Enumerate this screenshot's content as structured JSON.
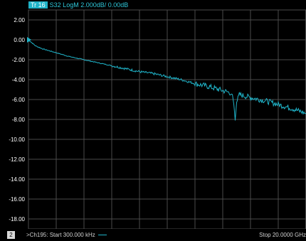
{
  "header": {
    "trace_badge": "Tr 16",
    "trace_desc": "S32 LogM 2.000dB/ 0.00dB"
  },
  "footer": {
    "channel_number": "2",
    "start_text": ">Ch195: Start 300.000 kHz",
    "stop_text": "Stop 20.0000 GHz"
  },
  "colors": {
    "trace": "#1fb3c8",
    "grid": "#4a4a4a",
    "background": "#000000"
  },
  "chart_data": {
    "type": "line",
    "title": "",
    "xlabel": "",
    "ylabel": "",
    "xlim": [
      0.0003,
      20.0
    ],
    "ylim": [
      -19,
      3
    ],
    "y_ticks": [
      "2.00",
      "0.00",
      "-2.00",
      "-4.00",
      "-6.00",
      "-8.00",
      "-10.00",
      "-12.00",
      "-14.00",
      "-16.00",
      "-18.00"
    ],
    "y_tick_values": [
      2,
      0,
      -2,
      -4,
      -6,
      -8,
      -10,
      -12,
      -14,
      -16,
      -18
    ],
    "reference_value": 0,
    "grid": true,
    "series": [
      {
        "x": [
          0.0003,
          0.5,
          1.0,
          2.0,
          3.0,
          4.0,
          5.0,
          6.0,
          7.0,
          8.0,
          9.0,
          10.0,
          11.0,
          12.0,
          13.0,
          14.0,
          14.5,
          14.7,
          14.8,
          14.9,
          15.0,
          15.2,
          16.0,
          17.0,
          18.0,
          19.0,
          20.0
        ],
        "y": [
          0.0,
          -0.6,
          -0.9,
          -1.3,
          -1.7,
          -2.0,
          -2.3,
          -2.6,
          -2.9,
          -3.2,
          -3.4,
          -3.7,
          -4.0,
          -4.4,
          -4.7,
          -5.1,
          -5.3,
          -5.5,
          -6.5,
          -8.1,
          -6.3,
          -5.5,
          -5.8,
          -6.1,
          -6.5,
          -6.9,
          -7.4
        ]
      }
    ]
  }
}
